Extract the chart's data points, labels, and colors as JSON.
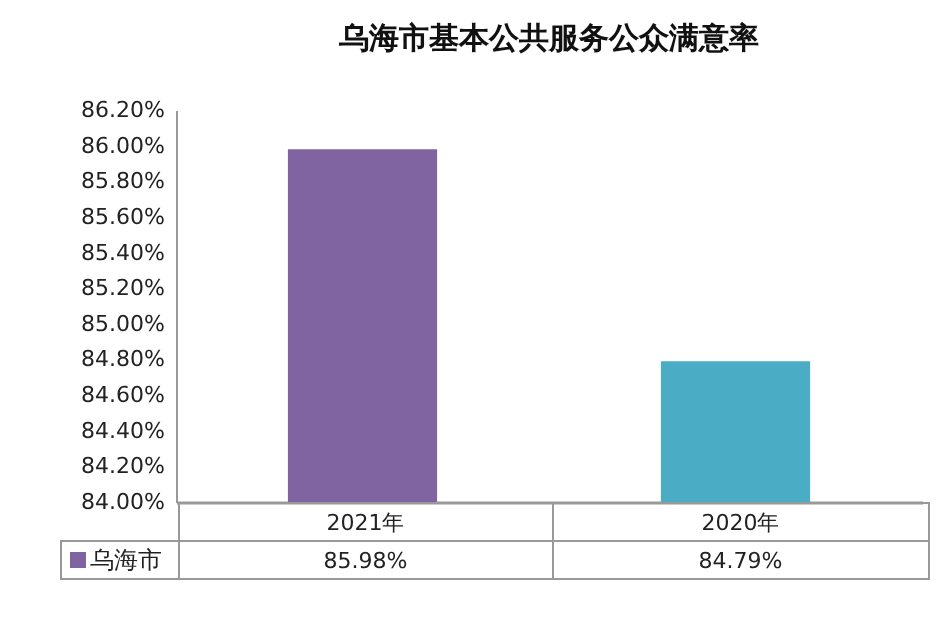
{
  "chart_data": {
    "type": "bar",
    "title": "乌海市基本公共服务公众满意率",
    "categories": [
      "2021年",
      "2020年"
    ],
    "series": [
      {
        "name": "乌海市",
        "values": [
          85.98,
          84.79
        ],
        "value_labels": [
          "85.98%",
          "84.79%"
        ]
      }
    ],
    "colors": [
      "#8064a2",
      "#4bacc6"
    ],
    "ylim": [
      84,
      86.2
    ],
    "yticks": [
      {
        "value": 84,
        "label": "84.00%"
      },
      {
        "value": 84.2,
        "label": "84.20%"
      },
      {
        "value": 84.4,
        "label": "84.40%"
      },
      {
        "value": 84.6,
        "label": "84.60%"
      },
      {
        "value": 84.8,
        "label": "84.80%"
      },
      {
        "value": 85,
        "label": "85.00%"
      },
      {
        "value": 85.2,
        "label": "85.20%"
      },
      {
        "value": 85.4,
        "label": "85.40%"
      },
      {
        "value": 85.6,
        "label": "85.60%"
      },
      {
        "value": 85.8,
        "label": "85.80%"
      },
      {
        "value": 86,
        "label": "86.00%"
      },
      {
        "value": 86.2,
        "label": "86.20%"
      }
    ],
    "grid": false,
    "legend": "bottom"
  }
}
